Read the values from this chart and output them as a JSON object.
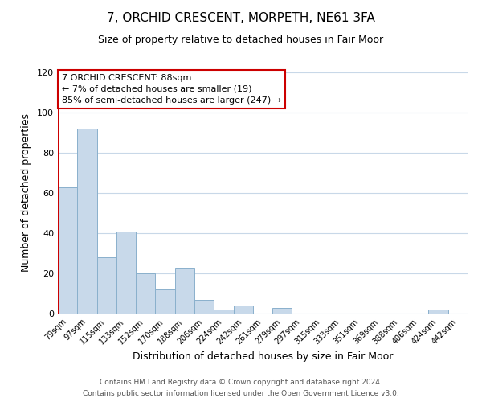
{
  "title": "7, ORCHID CRESCENT, MORPETH, NE61 3FA",
  "subtitle": "Size of property relative to detached houses in Fair Moor",
  "xlabel": "Distribution of detached houses by size in Fair Moor",
  "ylabel": "Number of detached properties",
  "bar_labels": [
    "79sqm",
    "97sqm",
    "115sqm",
    "133sqm",
    "152sqm",
    "170sqm",
    "188sqm",
    "206sqm",
    "224sqm",
    "242sqm",
    "261sqm",
    "279sqm",
    "297sqm",
    "315sqm",
    "333sqm",
    "351sqm",
    "369sqm",
    "388sqm",
    "406sqm",
    "424sqm",
    "442sqm"
  ],
  "bar_values": [
    63,
    92,
    28,
    41,
    20,
    12,
    23,
    7,
    2,
    4,
    0,
    3,
    0,
    0,
    0,
    0,
    0,
    0,
    0,
    2,
    0
  ],
  "bar_color": "#c8d9ea",
  "bar_edge_color": "#8ab0cc",
  "highlight_color": "#cc0000",
  "ylim": [
    0,
    120
  ],
  "yticks": [
    0,
    20,
    40,
    60,
    80,
    100,
    120
  ],
  "annotation_title": "7 ORCHID CRESCENT: 88sqm",
  "annotation_line1": "← 7% of detached houses are smaller (19)",
  "annotation_line2": "85% of semi-detached houses are larger (247) →",
  "footer_line1": "Contains HM Land Registry data © Crown copyright and database right 2024.",
  "footer_line2": "Contains public sector information licensed under the Open Government Licence v3.0.",
  "background_color": "#ffffff",
  "grid_color": "#c8d8e8"
}
